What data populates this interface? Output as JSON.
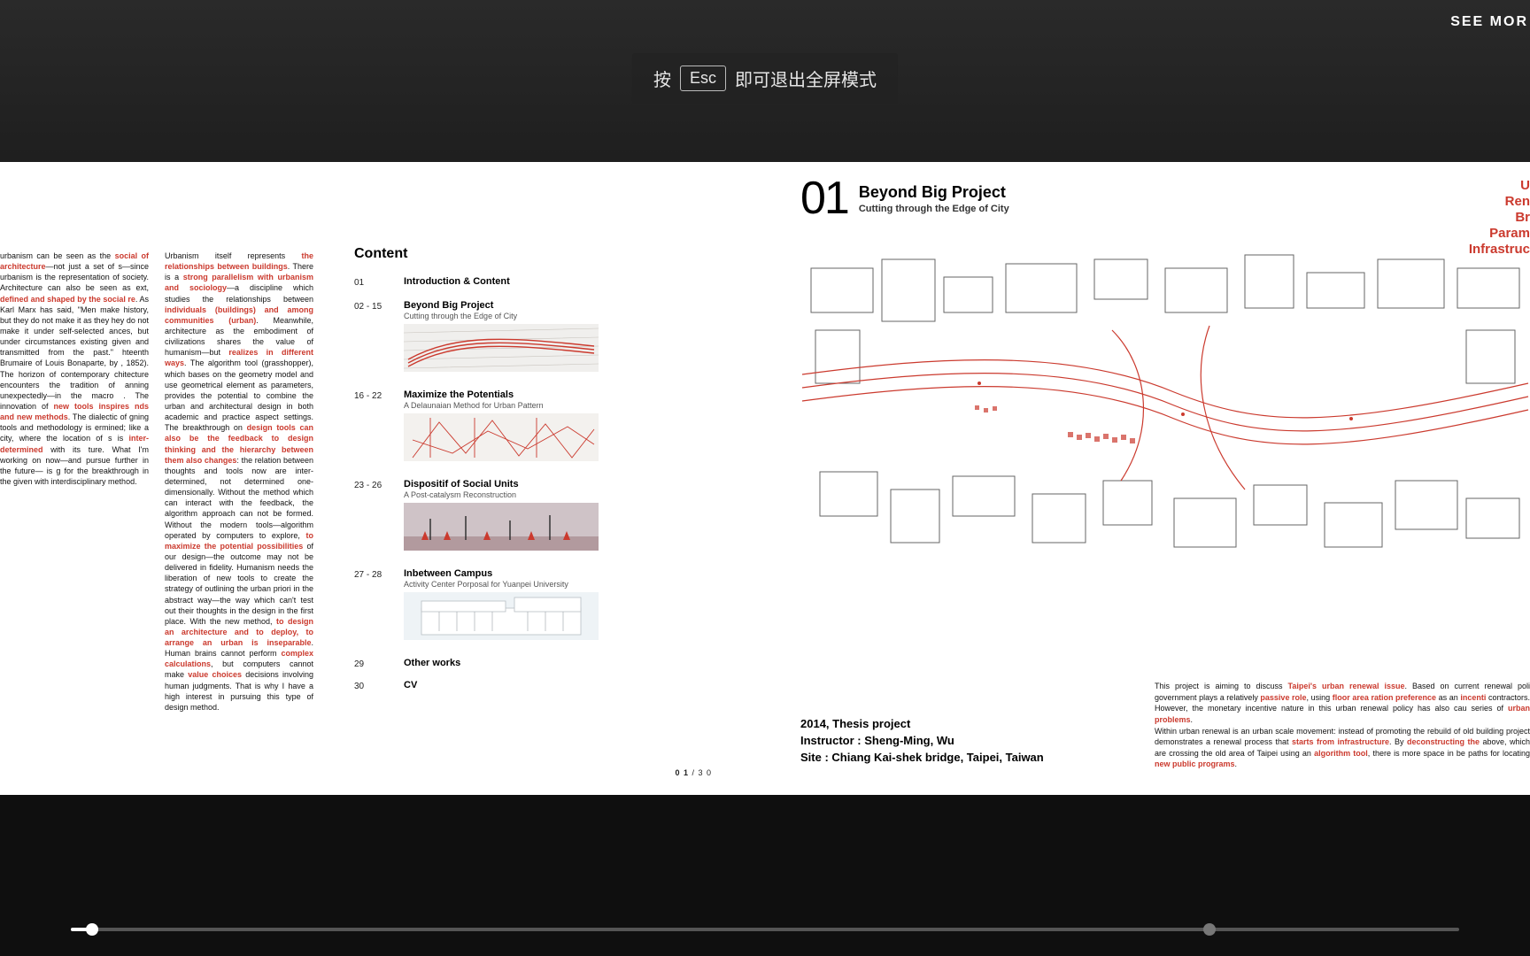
{
  "colors": {
    "accent": "#cb3a2e",
    "page_bg": "#ffffff",
    "viewer_bg": "#1a1a1a",
    "scrub_track": "#555555",
    "scrub_fill": "#ffffff"
  },
  "viewer": {
    "see_more": "SEE MOR",
    "esc_prefix": "按",
    "esc_key": "Esc",
    "esc_suffix": "即可退出全屏模式",
    "scrubber": {
      "progress_pct": 1.5,
      "end_dot_pct": 82
    }
  },
  "left_page": {
    "intro_col1_html": "urbanism can be seen as the <span class='hl'>social of architecture</span>—not just a set of s—since urbanism is the representation of society. Architecture can also be seen as ext, <span class='hl'>defined and shaped by the social re</span>. As Karl Marx has said, \"Men make history, but they do not make it as they hey do not make it under self-selected ances, but under circumstances existing given and transmitted from the past.\" hteenth Brumaire of Louis Bonaparte, by , 1852). The horizon of contemporary chitecture encounters the tradition of anning unexpectedly—in the macro . The innovation of <span class='hl'>new tools inspires nds and new methods</span>. The dialectic of gning tools and methodology is ermined; like a city, where the location of s is <span class='hl'>inter-determined</span> with its ture. What I'm working on now—and pursue further in the future— is g for the breakthrough in the given with interdisciplinary method.",
    "intro_col2_html": "Urbanism itself represents <span class='hl'>the relationships between buildings</span>. There is a <span class='hl'>strong parallelism with urbanism and sociology</span>—a discipline which studies the relationships between <span class='hl'>individuals (buildings) and among communities (urban)</span>. Meanwhile, architecture as the embodiment of civilizations shares the value of humanism—but <span class='hl'>realizes in different ways</span>. The algorithm tool (grasshopper), which bases on the geometry model and use geometrical element as parameters, provides the potential to combine the urban and architectural design in both academic and practice aspect settings. The breakthrough on <span class='hl'>design tools can also be the feedback to design thinking and the hierarchy between them also changes</span>: the relation between thoughts and tools now are inter-determined, not determined one-dimensionally. Without the method which can interact with the feedback, the algorithm approach can not be formed. Without the modern tools—algorithm operated by computers to explore, <span class='hl'>to maximize the potential possibilities</span> of our design—the outcome may not be delivered in fidelity. Humanism needs the liberation of new tools to create the strategy of outlining the urban priori in the abstract way—the way which can't test out their thoughts in the design in the first place. With the new method, <span class='hl'>to design an architecture and to deploy, to arrange an urban is inseparable</span>. Human brains cannot perform <span class='hl'>complex calculations</span>, but computers cannot make <span class='hl'>value choices</span> decisions involving human judgments. That is why I have a high interest in pursuing this type of design method.",
    "content_title": "Content",
    "toc": [
      {
        "pages": "01",
        "label": "Introduction  &  Content",
        "sub": "",
        "thumb": "none"
      },
      {
        "pages": "02 - 15",
        "label": "Beyond Big Project",
        "sub": "Cutting through the Edge of City",
        "thumb": "svg1"
      },
      {
        "pages": "16 - 22",
        "label": "Maximize the Potentials",
        "sub": "A Delaunaian Method for Urban Pattern",
        "thumb": "svg2"
      },
      {
        "pages": "23 - 26",
        "label": "Dispositif of Social Units",
        "sub": "A Post-catalysm Reconstruction",
        "thumb": "svg3"
      },
      {
        "pages": "27 - 28",
        "label": "Inbetween Campus",
        "sub": "Activity Center Porposal for Yuanpei University",
        "thumb": "svg4"
      },
      {
        "pages": "29",
        "label": "Other works",
        "sub": "",
        "thumb": "none"
      },
      {
        "pages": "30",
        "label": "CV",
        "sub": "",
        "thumb": "none"
      }
    ],
    "page_number_current": "0 1",
    "page_number_total": "/ 3 0"
  },
  "right_page": {
    "proj_num": "01",
    "proj_title": "Beyond Big Project",
    "proj_sub": "Cutting through the Edge of City",
    "tags": [
      "U",
      "Ren",
      "Br",
      "Param",
      "Infrastruc"
    ],
    "meta": [
      "2014, Thesis project",
      "Instructor : Sheng-Ming, Wu",
      "Site : Chiang Kai-shek bridge, Taipei, Taiwan"
    ],
    "desc_html": "This project is aiming to discuss <span class='hl'>Taipei's urban renewal issue</span>. Based on current renewal poli government plays a relatively <span class='hl'>passive role</span>, using <span class='hl'>floor area ration preference</span> as an <span class='hl'>incenti</span> contractors. However, the monetary incentive nature in this urban renewal policy has also cau series of <span class='hl'>urban problems</span>.<br>Within urban renewal is an urban scale movement: instead of promoting the rebuild of old building project demonstrates a renewal process that <span class='hl'>starts from infrastructure</span>. By <span class='hl'>deconstructing the</span> above, which are crossing the old area of Taipei using an <span class='hl'>algorithm tool</span>, there is more space in be paths for locating <span class='hl'>new public programs</span>."
  }
}
